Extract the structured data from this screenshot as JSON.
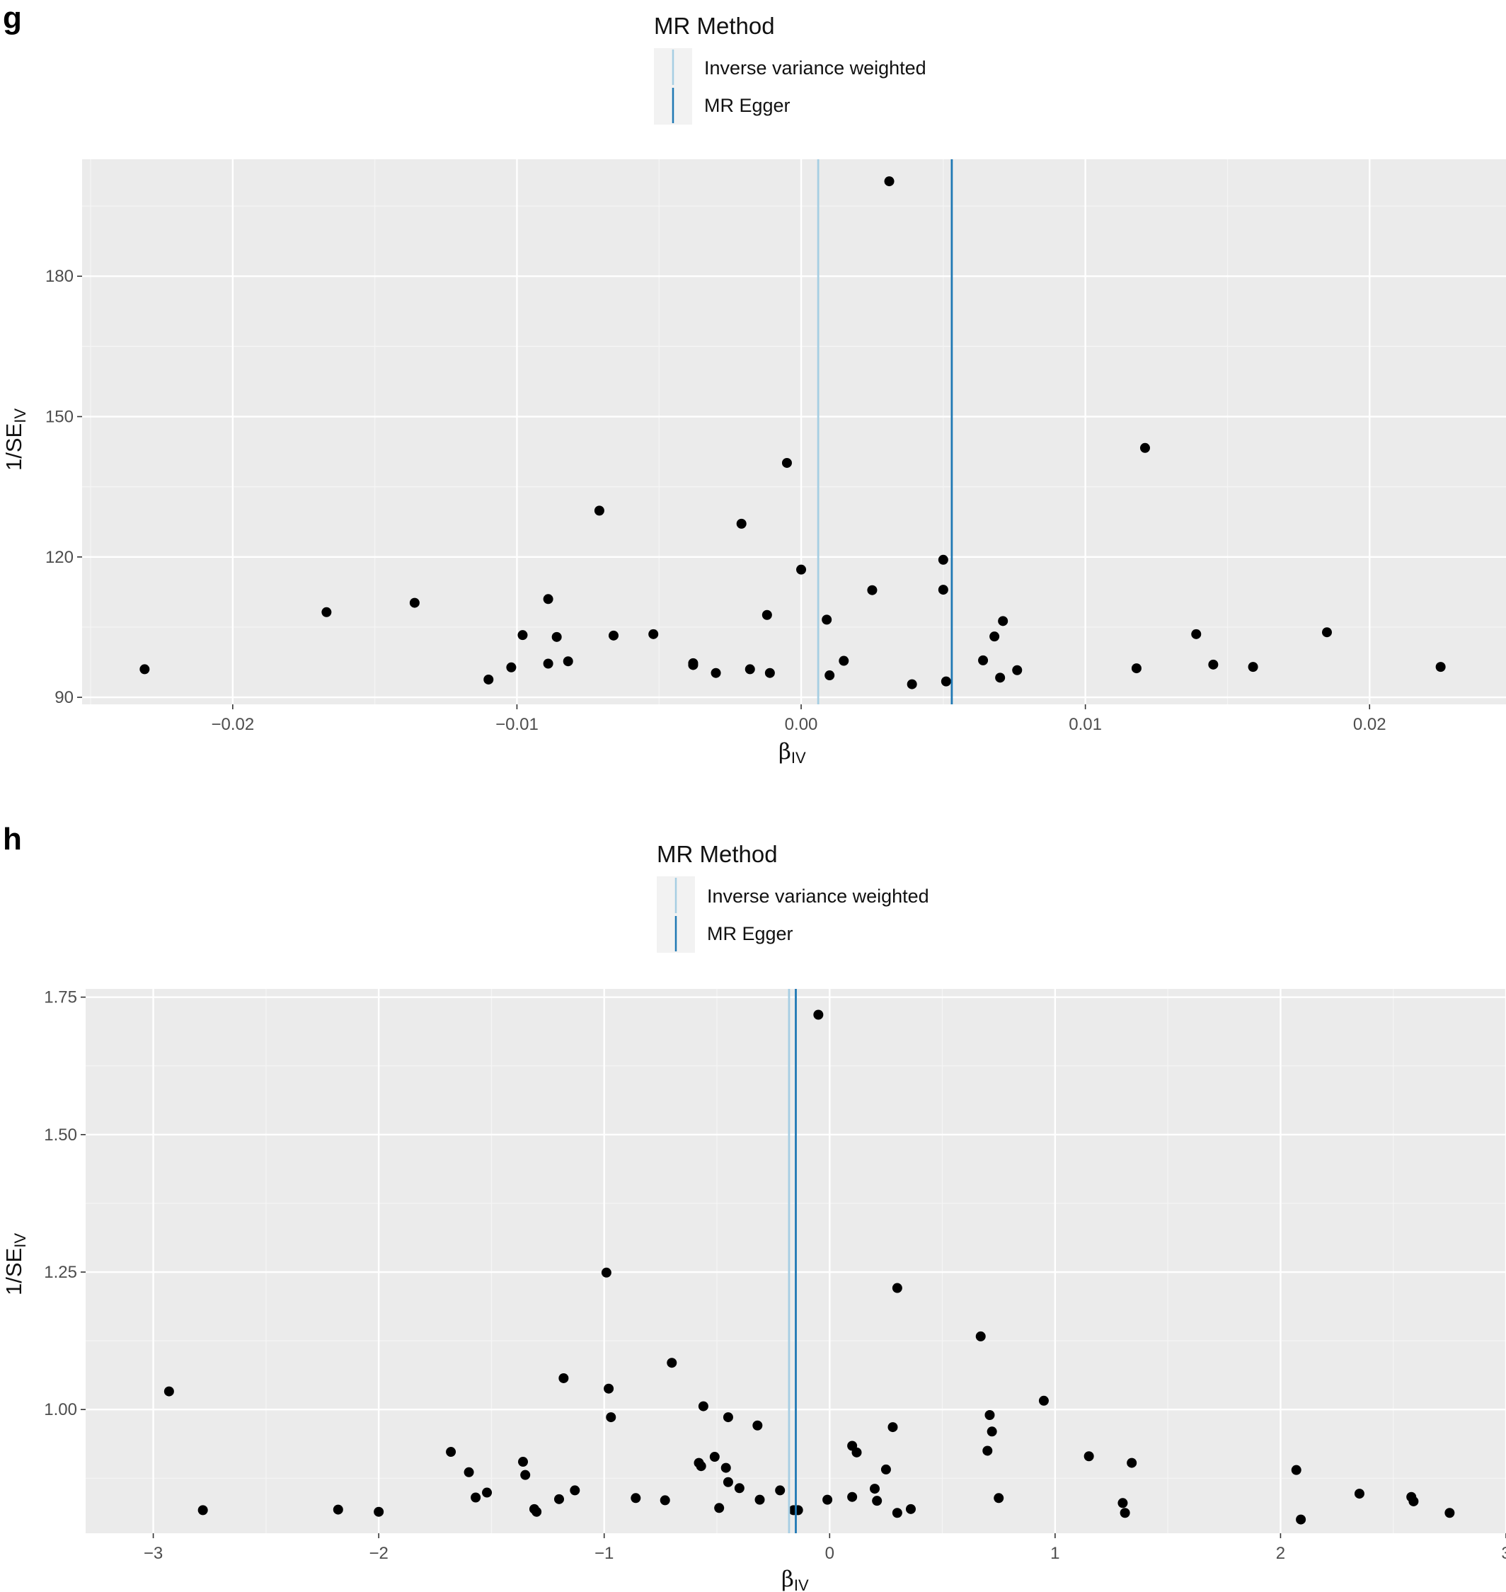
{
  "chart_data": [
    {
      "panel": "g",
      "type": "scatter",
      "legend": {
        "title": "MR Method",
        "placement": "top-center",
        "entries": [
          {
            "name": "Inverse variance weighted",
            "color": "#a6cee3"
          },
          {
            "name": "MR Egger",
            "color": "#1f78b4"
          }
        ]
      },
      "xlabel": "β",
      "xlabel_sub": "IV",
      "ylabel": "1/SE",
      "ylabel_sub": "IV",
      "xlim": [
        -0.0253,
        0.0248
      ],
      "ylim": [
        88.5,
        205
      ],
      "xticks": [
        -0.02,
        -0.01,
        0.0,
        0.01,
        0.02
      ],
      "xtick_labels": [
        "−0.02",
        "−0.01",
        "0.00",
        "0.01",
        "0.02"
      ],
      "yticks": [
        90,
        120,
        150,
        180
      ],
      "ytick_labels": [
        "90",
        "120",
        "150",
        "180"
      ],
      "grid": true,
      "vlines": [
        {
          "name": "Inverse variance weighted",
          "x": 0.0006,
          "color": "#a6cee3"
        },
        {
          "name": "MR Egger",
          "x": 0.0053,
          "color": "#1f78b4"
        }
      ],
      "points": [
        [
          -0.0231,
          96.0
        ],
        [
          -0.0167,
          108.2
        ],
        [
          -0.0136,
          110.2
        ],
        [
          -0.011,
          93.8
        ],
        [
          -0.0102,
          96.4
        ],
        [
          -0.0098,
          103.3
        ],
        [
          -0.0089,
          111.0
        ],
        [
          -0.0089,
          97.2
        ],
        [
          -0.0086,
          102.9
        ],
        [
          -0.0082,
          97.7
        ],
        [
          -0.0071,
          129.9
        ],
        [
          -0.0066,
          103.2
        ],
        [
          -0.0052,
          103.5
        ],
        [
          -0.0038,
          97.3
        ],
        [
          -0.0038,
          96.9
        ],
        [
          -0.003,
          95.2
        ],
        [
          -0.0021,
          127.1
        ],
        [
          -0.0018,
          96.0
        ],
        [
          -0.0011,
          95.2
        ],
        [
          -0.0012,
          107.6
        ],
        [
          -0.0005,
          140.1
        ],
        [
          0.0,
          117.3
        ],
        [
          0.0009,
          106.6
        ],
        [
          0.001,
          94.7
        ],
        [
          0.0015,
          97.8
        ],
        [
          0.0025,
          112.9
        ],
        [
          0.0031,
          200.3
        ],
        [
          0.0039,
          92.8
        ],
        [
          0.005,
          119.4
        ],
        [
          0.005,
          113.0
        ],
        [
          0.0051,
          93.4
        ],
        [
          0.0064,
          97.9
        ],
        [
          0.0068,
          103.0
        ],
        [
          0.007,
          94.2
        ],
        [
          0.0071,
          106.3
        ],
        [
          0.0076,
          95.8
        ],
        [
          0.0118,
          96.2
        ],
        [
          0.0121,
          143.3
        ],
        [
          0.0139,
          103.5
        ],
        [
          0.0145,
          97.0
        ],
        [
          0.0159,
          96.5
        ],
        [
          0.0185,
          103.9
        ],
        [
          0.0225,
          96.5
        ]
      ]
    },
    {
      "panel": "h",
      "type": "scatter",
      "legend": {
        "title": "MR Method",
        "placement": "top-center",
        "entries": [
          {
            "name": "Inverse variance weighted",
            "color": "#a6cee3"
          },
          {
            "name": "MR Egger",
            "color": "#1f78b4"
          }
        ]
      },
      "xlabel": "β",
      "xlabel_sub": "IV",
      "ylabel": "1/SE",
      "ylabel_sub": "IV",
      "xlim": [
        -3.3,
        3.0
      ],
      "ylim": [
        0.775,
        1.765
      ],
      "xticks": [
        -3,
        -2,
        -1,
        0,
        1,
        2,
        3
      ],
      "xtick_labels": [
        "−3",
        "−2",
        "−1",
        "0",
        "1",
        "2",
        "3"
      ],
      "yticks": [
        1.0,
        1.25,
        1.5,
        1.75
      ],
      "ytick_labels": [
        "1.00",
        "1.25",
        "1.50",
        "1.75"
      ],
      "grid": true,
      "vlines": [
        {
          "name": "Inverse variance weighted",
          "x": -0.18,
          "color": "#a6cee3"
        },
        {
          "name": "MR Egger",
          "x": -0.15,
          "color": "#1f78b4"
        }
      ],
      "points": [
        [
          -2.93,
          1.033
        ],
        [
          -2.78,
          0.817
        ],
        [
          -2.18,
          0.818
        ],
        [
          -2.0,
          0.814
        ],
        [
          -1.68,
          0.923
        ],
        [
          -1.6,
          0.886
        ],
        [
          -1.57,
          0.84
        ],
        [
          -1.52,
          0.849
        ],
        [
          -1.36,
          0.905
        ],
        [
          -1.35,
          0.881
        ],
        [
          -1.31,
          0.819
        ],
        [
          -1.3,
          0.814
        ],
        [
          -1.2,
          0.837
        ],
        [
          -1.18,
          1.057
        ],
        [
          -1.13,
          0.853
        ],
        [
          -0.99,
          1.249
        ],
        [
          -0.98,
          1.038
        ],
        [
          -0.97,
          0.986
        ],
        [
          -0.86,
          0.839
        ],
        [
          -0.73,
          0.835
        ],
        [
          -0.7,
          1.085
        ],
        [
          -0.58,
          0.903
        ],
        [
          -0.57,
          0.897
        ],
        [
          -0.56,
          1.006
        ],
        [
          -0.51,
          0.914
        ],
        [
          -0.49,
          0.821
        ],
        [
          -0.46,
          0.894
        ],
        [
          -0.45,
          0.868
        ],
        [
          -0.45,
          0.986
        ],
        [
          -0.4,
          0.857
        ],
        [
          -0.32,
          0.971
        ],
        [
          -0.31,
          0.836
        ],
        [
          -0.22,
          0.853
        ],
        [
          -0.16,
          0.817
        ],
        [
          -0.14,
          0.817
        ],
        [
          -0.05,
          1.718
        ],
        [
          -0.01,
          0.836
        ],
        [
          0.1,
          0.934
        ],
        [
          0.1,
          0.841
        ],
        [
          0.12,
          0.922
        ],
        [
          0.2,
          0.856
        ],
        [
          0.21,
          0.834
        ],
        [
          0.25,
          0.891
        ],
        [
          0.28,
          0.968
        ],
        [
          0.3,
          1.221
        ],
        [
          0.3,
          0.812
        ],
        [
          0.36,
          0.819
        ],
        [
          0.67,
          1.133
        ],
        [
          0.7,
          0.925
        ],
        [
          0.71,
          0.99
        ],
        [
          0.72,
          0.96
        ],
        [
          0.75,
          0.839
        ],
        [
          0.95,
          1.016
        ],
        [
          1.15,
          0.915
        ],
        [
          1.3,
          0.83
        ],
        [
          1.31,
          0.812
        ],
        [
          1.34,
          0.903
        ],
        [
          2.07,
          0.89
        ],
        [
          2.09,
          0.8
        ],
        [
          2.35,
          0.847
        ],
        [
          2.58,
          0.841
        ],
        [
          2.59,
          0.833
        ],
        [
          2.75,
          0.812
        ]
      ]
    }
  ]
}
